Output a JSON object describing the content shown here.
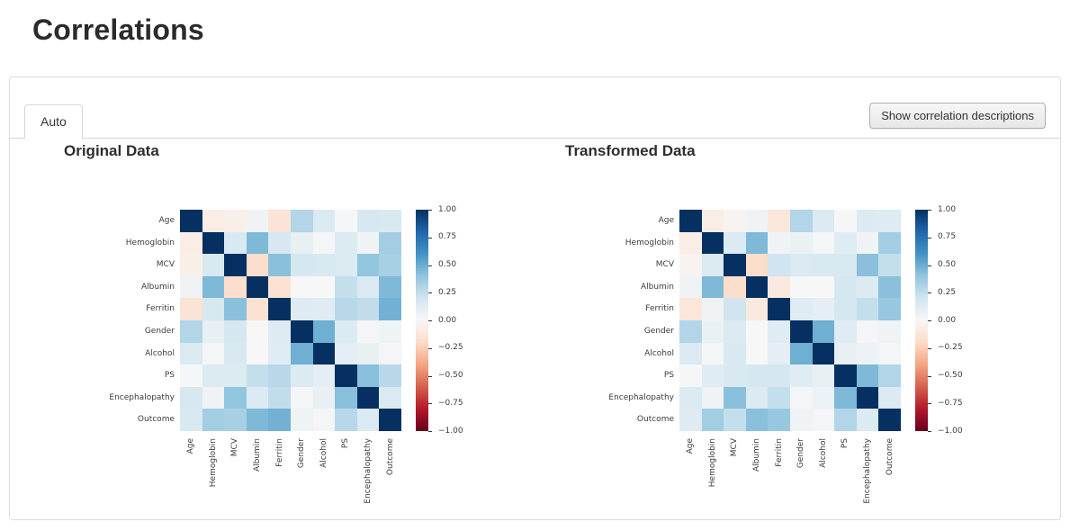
{
  "page": {
    "title": "Correlations"
  },
  "panel": {
    "tab_label": "Auto",
    "show_descriptions_button": "Show correlation descriptions"
  },
  "colors": {
    "positive_max": "#053061",
    "negative_max": "#67001f",
    "neutral": "#f7f7f7",
    "panel_border": "#dcdcdc",
    "button_border": "#b0b0b0"
  },
  "chart_data": [
    {
      "type": "heatmap",
      "title": "Original Data",
      "variables": [
        "Age",
        "Hemoglobin",
        "MCV",
        "Albumin",
        "Ferritin",
        "Gender",
        "Alcohol",
        "PS",
        "Encephalopathy",
        "Outcome"
      ],
      "vmin": -1,
      "vmax": 1,
      "colormap": "RdBu",
      "colormap_anchors": [
        "#67001f",
        "#b2182b",
        "#d6604d",
        "#f4a582",
        "#fddbc7",
        "#f7f7f7",
        "#d1e5f0",
        "#92c5de",
        "#4393c3",
        "#2166ac",
        "#053061"
      ],
      "colorbar_ticks": [
        {
          "value": 1.0,
          "label": "1.00"
        },
        {
          "value": 0.75,
          "label": "0.75"
        },
        {
          "value": 0.5,
          "label": "0.50"
        },
        {
          "value": 0.25,
          "label": "0.25"
        },
        {
          "value": 0.0,
          "label": "0.00"
        },
        {
          "value": -0.25,
          "label": "−0.25"
        },
        {
          "value": -0.5,
          "label": "−0.50"
        },
        {
          "value": -0.75,
          "label": "−0.75"
        },
        {
          "value": -1.0,
          "label": "−1.00"
        }
      ],
      "matrix": [
        [
          1.0,
          -0.07,
          -0.06,
          0.04,
          -0.14,
          0.3,
          0.15,
          0.01,
          0.17,
          0.16
        ],
        [
          -0.07,
          1.0,
          0.16,
          0.45,
          0.17,
          0.08,
          0.02,
          0.14,
          0.04,
          0.35
        ],
        [
          -0.06,
          0.16,
          1.0,
          -0.18,
          0.42,
          0.18,
          0.16,
          0.14,
          0.4,
          0.33
        ],
        [
          0.04,
          0.45,
          -0.18,
          1.0,
          -0.15,
          0.0,
          0.0,
          0.24,
          0.15,
          0.45
        ],
        [
          -0.14,
          0.17,
          0.42,
          -0.15,
          1.0,
          0.13,
          0.12,
          0.28,
          0.25,
          0.48
        ],
        [
          0.3,
          0.08,
          0.18,
          0.0,
          0.13,
          1.0,
          0.49,
          0.14,
          0.02,
          0.05
        ],
        [
          0.15,
          0.02,
          0.16,
          0.0,
          0.12,
          0.49,
          1.0,
          0.1,
          0.08,
          0.02
        ],
        [
          0.01,
          0.14,
          0.14,
          0.24,
          0.28,
          0.14,
          0.1,
          1.0,
          0.42,
          0.28
        ],
        [
          0.17,
          0.04,
          0.4,
          0.15,
          0.25,
          0.02,
          0.08,
          0.42,
          1.0,
          0.15
        ],
        [
          0.16,
          0.35,
          0.33,
          0.45,
          0.48,
          0.05,
          0.02,
          0.28,
          0.15,
          1.0
        ]
      ]
    },
    {
      "type": "heatmap",
      "title": "Transformed Data",
      "variables": [
        "Age",
        "Hemoglobin",
        "MCV",
        "Albumin",
        "Ferritin",
        "Gender",
        "Alcohol",
        "PS",
        "Encephalopathy",
        "Outcome"
      ],
      "vmin": -1,
      "vmax": 1,
      "colormap": "RdBu",
      "colormap_anchors": [
        "#67001f",
        "#b2182b",
        "#d6604d",
        "#f4a582",
        "#fddbc7",
        "#f7f7f7",
        "#d1e5f0",
        "#92c5de",
        "#4393c3",
        "#2166ac",
        "#053061"
      ],
      "colorbar_ticks": [
        {
          "value": 1.0,
          "label": "1.00"
        },
        {
          "value": 0.75,
          "label": "0.75"
        },
        {
          "value": 0.5,
          "label": "0.50"
        },
        {
          "value": 0.25,
          "label": "0.25"
        },
        {
          "value": 0.0,
          "label": "0.00"
        },
        {
          "value": -0.25,
          "label": "−0.25"
        },
        {
          "value": -0.5,
          "label": "−0.50"
        },
        {
          "value": -0.75,
          "label": "−0.75"
        },
        {
          "value": -1.0,
          "label": "−1.00"
        }
      ],
      "matrix": [
        [
          1.0,
          -0.07,
          -0.03,
          0.04,
          -0.12,
          0.3,
          0.15,
          0.01,
          0.14,
          0.13
        ],
        [
          -0.07,
          1.0,
          0.14,
          0.45,
          0.04,
          0.07,
          0.02,
          0.12,
          0.04,
          0.35
        ],
        [
          -0.03,
          0.14,
          1.0,
          -0.18,
          0.2,
          0.15,
          0.16,
          0.16,
          0.42,
          0.24
        ],
        [
          0.04,
          0.45,
          -0.18,
          1.0,
          -0.1,
          0.0,
          0.0,
          0.18,
          0.14,
          0.42
        ],
        [
          -0.12,
          0.04,
          0.2,
          -0.1,
          1.0,
          0.12,
          0.1,
          0.18,
          0.24,
          0.38
        ],
        [
          0.3,
          0.07,
          0.15,
          0.0,
          0.12,
          1.0,
          0.49,
          0.12,
          0.02,
          0.04
        ],
        [
          0.15,
          0.02,
          0.16,
          0.0,
          0.1,
          0.49,
          1.0,
          0.08,
          0.06,
          0.02
        ],
        [
          0.01,
          0.12,
          0.16,
          0.18,
          0.18,
          0.12,
          0.08,
          1.0,
          0.45,
          0.3
        ],
        [
          0.14,
          0.04,
          0.42,
          0.14,
          0.24,
          0.02,
          0.06,
          0.45,
          1.0,
          0.14
        ],
        [
          0.13,
          0.35,
          0.24,
          0.42,
          0.38,
          0.04,
          0.02,
          0.3,
          0.14,
          1.0
        ]
      ]
    }
  ]
}
